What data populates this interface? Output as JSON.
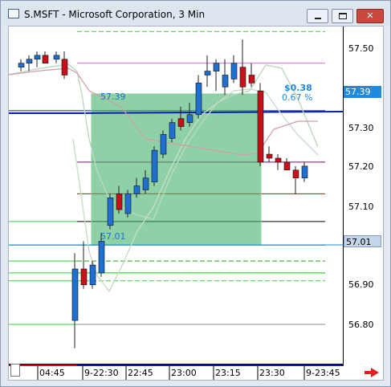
{
  "window": {
    "title": "S.MSFT - Microsoft Corporation, 3 Min",
    "close_glyph": "✕"
  },
  "colors": {
    "up": "#1f6fd1",
    "down": "#c8101a",
    "zone_fill": "#45b36b",
    "blue_line": "#0a1ea8",
    "axis_highlight": "#1f8ae0"
  },
  "price_axis": {
    "ticks": [
      "57.50",
      "57.40",
      "57.30",
      "57.20",
      "57.10",
      "57.01",
      "56.90",
      "56.80"
    ],
    "highlight_label": "57.39",
    "current_label": "57.01"
  },
  "time_axis": {
    "labels": [
      "04:45",
      "9-22:30",
      "22:45",
      "23:00",
      "23:15",
      "23:30",
      "9-23:45"
    ]
  },
  "annotations": {
    "zone_top": "57.39",
    "zone_bottom": "57.01",
    "change_amount": "$0.38",
    "change_percent": "0.67 %"
  },
  "chart_data": {
    "type": "candlestick",
    "ylim": [
      56.73,
      57.57
    ],
    "levels": [
      57.54,
      57.46,
      57.34,
      57.21,
      57.13,
      57.06,
      57.0,
      56.96,
      56.93,
      56.91,
      56.8
    ],
    "candles": [
      {
        "o": 57.45,
        "h": 57.47,
        "l": 57.44,
        "c": 57.46
      },
      {
        "o": 57.46,
        "h": 57.48,
        "l": 57.44,
        "c": 57.47
      },
      {
        "o": 57.47,
        "h": 57.49,
        "l": 57.45,
        "c": 57.48
      },
      {
        "o": 57.48,
        "h": 57.49,
        "l": 57.46,
        "c": 57.46
      },
      {
        "o": 57.47,
        "h": 57.49,
        "l": 57.46,
        "c": 57.48
      },
      {
        "o": 57.47,
        "h": 57.49,
        "l": 57.42,
        "c": 57.43
      },
      {
        "o": 56.81,
        "h": 56.98,
        "l": 56.74,
        "c": 56.94
      },
      {
        "o": 56.94,
        "h": 57.01,
        "l": 56.89,
        "c": 56.9
      },
      {
        "o": 56.9,
        "h": 56.96,
        "l": 56.89,
        "c": 56.95
      },
      {
        "o": 56.93,
        "h": 57.03,
        "l": 56.92,
        "c": 57.01
      },
      {
        "o": 57.05,
        "h": 57.13,
        "l": 57.04,
        "c": 57.12
      },
      {
        "o": 57.13,
        "h": 57.15,
        "l": 57.08,
        "c": 57.09
      },
      {
        "o": 57.08,
        "h": 57.14,
        "l": 57.07,
        "c": 57.13
      },
      {
        "o": 57.13,
        "h": 57.17,
        "l": 57.12,
        "c": 57.15
      },
      {
        "o": 57.14,
        "h": 57.19,
        "l": 57.13,
        "c": 57.17
      },
      {
        "o": 57.16,
        "h": 57.25,
        "l": 57.15,
        "c": 57.24
      },
      {
        "o": 57.23,
        "h": 57.29,
        "l": 57.22,
        "c": 57.28
      },
      {
        "o": 57.27,
        "h": 57.32,
        "l": 57.26,
        "c": 57.31
      },
      {
        "o": 57.32,
        "h": 57.35,
        "l": 57.29,
        "c": 57.3
      },
      {
        "o": 57.31,
        "h": 57.36,
        "l": 57.3,
        "c": 57.33
      },
      {
        "o": 57.33,
        "h": 57.43,
        "l": 57.32,
        "c": 57.41
      },
      {
        "o": 57.43,
        "h": 57.48,
        "l": 57.4,
        "c": 57.44
      },
      {
        "o": 57.44,
        "h": 57.47,
        "l": 57.39,
        "c": 57.46
      },
      {
        "o": 57.4,
        "h": 57.47,
        "l": 57.38,
        "c": 57.43
      },
      {
        "o": 57.42,
        "h": 57.48,
        "l": 57.41,
        "c": 57.46
      },
      {
        "o": 57.45,
        "h": 57.52,
        "l": 57.38,
        "c": 57.4
      },
      {
        "o": 57.43,
        "h": 57.46,
        "l": 57.4,
        "c": 57.41
      },
      {
        "o": 57.39,
        "h": 57.41,
        "l": 57.2,
        "c": 57.21
      },
      {
        "o": 57.23,
        "h": 57.25,
        "l": 57.21,
        "c": 57.22
      },
      {
        "o": 57.22,
        "h": 57.23,
        "l": 57.19,
        "c": 57.21
      },
      {
        "o": 57.21,
        "h": 57.22,
        "l": 57.19,
        "c": 57.19
      },
      {
        "o": 57.19,
        "h": 57.2,
        "l": 57.13,
        "c": 57.17
      },
      {
        "o": 57.17,
        "h": 57.21,
        "l": 57.16,
        "c": 57.2
      }
    ]
  }
}
